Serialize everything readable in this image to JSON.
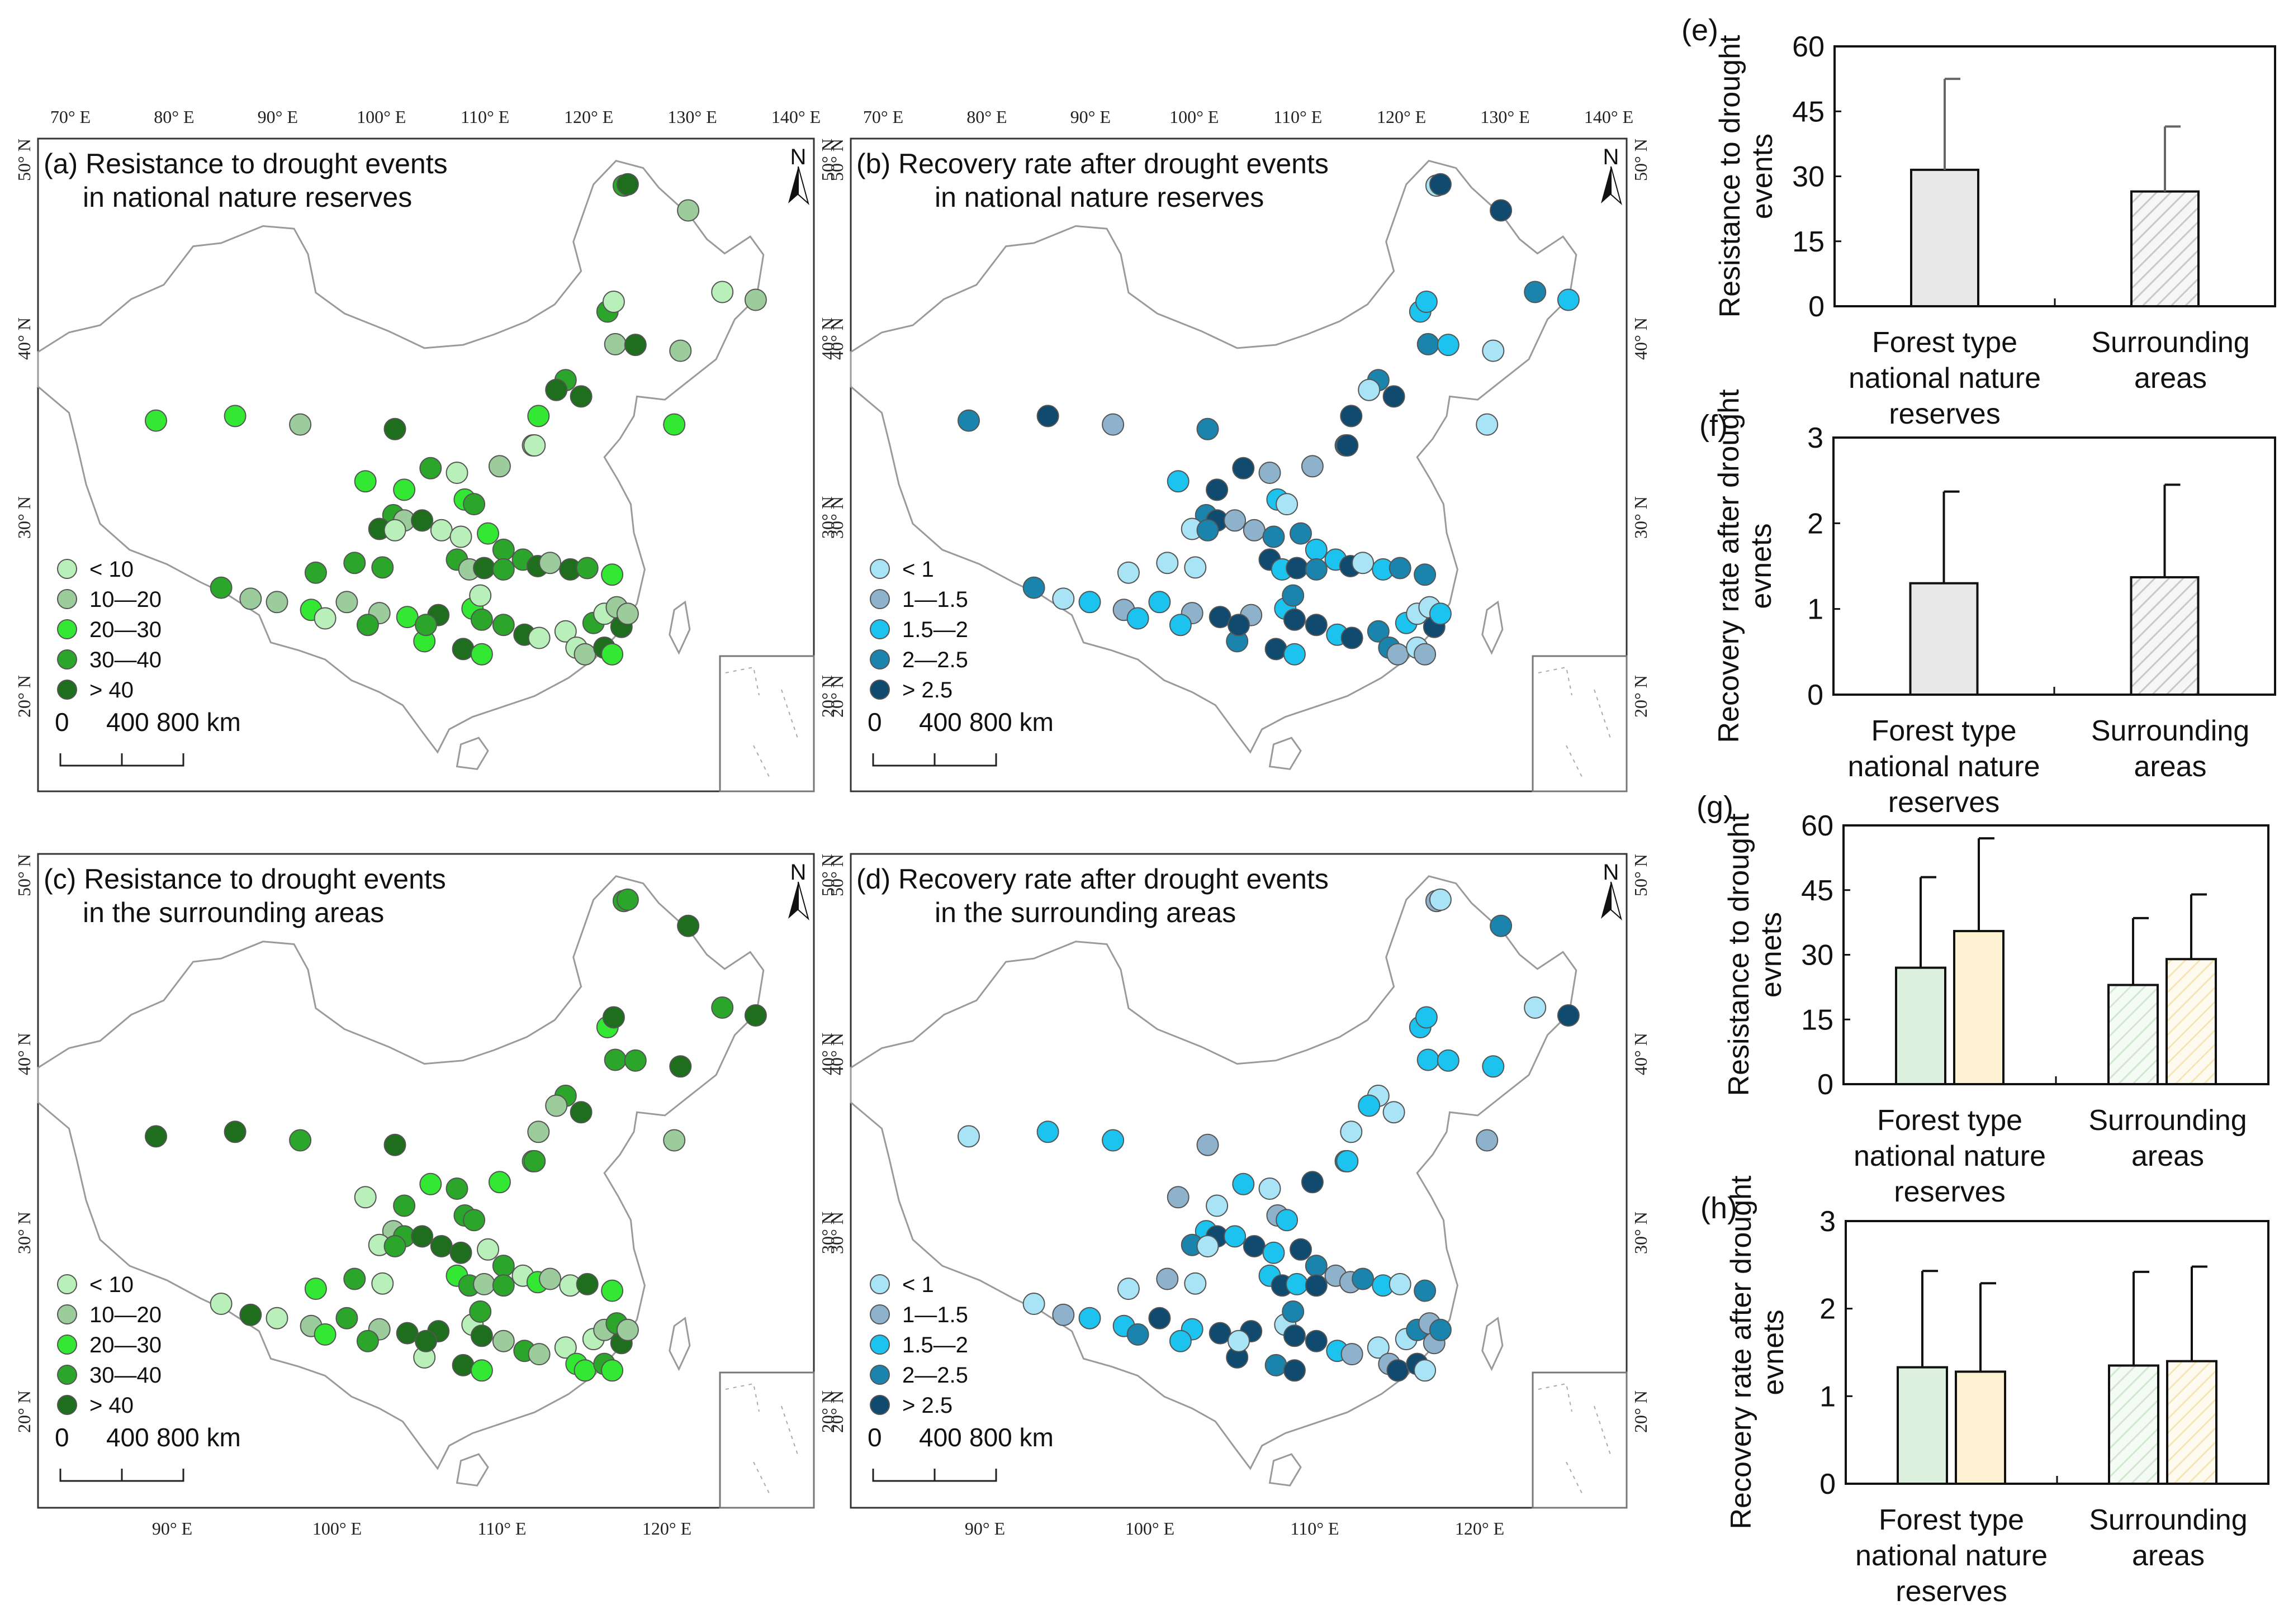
{
  "maps": [
    {
      "id": "a",
      "title_line1": "(a) Resistance to drought events",
      "title_line2": "in national nature reserves",
      "lon_ticks": [
        "70° E",
        "80° E",
        "90° E",
        "100° E",
        "110° E",
        "120° E",
        "130° E",
        "140° E"
      ],
      "lat_ticks": [
        "50° N",
        "40° N",
        "30° N",
        "20° N"
      ],
      "legend": [
        "< 10",
        "10—20",
        "20—30",
        "30—40",
        "> 40"
      ],
      "palette": "green",
      "seed": 11
    },
    {
      "id": "b",
      "title_line1": "(b) Recovery rate after drought events",
      "title_line2": "in national nature reserves",
      "lon_ticks": [
        "70° E",
        "80° E",
        "90° E",
        "100° E",
        "110° E",
        "120° E",
        "130° E",
        "140° E"
      ],
      "lat_ticks": [
        "50° N",
        "40° N",
        "30° N",
        "20° N"
      ],
      "legend": [
        "< 1",
        "1—1.5",
        "1.5—2",
        "2—2.5",
        "> 2.5"
      ],
      "palette": "blue",
      "seed": 23
    },
    {
      "id": "c",
      "title_line1": "(c) Resistance to drought events",
      "title_line2": "in the surrounding areas",
      "lon_ticks": [
        "90° E",
        "100° E",
        "110° E",
        "120° E"
      ],
      "lat_ticks": [
        "50° N",
        "40° N",
        "30° N",
        "20° N"
      ],
      "legend": [
        "< 10",
        "10—20",
        "20—30",
        "30—40",
        "> 40"
      ],
      "palette": "green",
      "seed": 37
    },
    {
      "id": "d",
      "title_line1": "(d) Recovery rate after drought events",
      "title_line2": "in the surrounding areas",
      "lon_ticks": [
        "90° E",
        "100° E",
        "110° E",
        "120° E"
      ],
      "lat_ticks": [
        "50° N",
        "40° N",
        "30° N",
        "20° N"
      ],
      "legend": [
        "< 1",
        "1—1.5",
        "1.5—2",
        "2—2.5",
        "> 2.5"
      ],
      "palette": "blue",
      "seed": 53
    }
  ],
  "scale_bar": {
    "labels": [
      "0",
      "400",
      "800 km"
    ]
  },
  "north_label": "N",
  "colors": {
    "green": [
      "#b9f0b9",
      "#9ccc9c",
      "#33e833",
      "#2ba62b",
      "#1e6e1e"
    ],
    "blue": [
      "#a8e4f5",
      "#8fb2cc",
      "#1cc3ee",
      "#1a84ad",
      "#104a6e"
    ],
    "map_outline": "#9a9a9a",
    "frame": "#333333"
  },
  "chart_data": [
    {
      "id": "e",
      "panel_label": "(e)",
      "type": "bar",
      "ylabel": "Resistance to drought events",
      "ylim": [
        0,
        60
      ],
      "yticks": [
        "0",
        "15",
        "30",
        "45",
        "60"
      ],
      "categories": [
        "Forest type national nature reserves",
        "Surrounding areas"
      ],
      "category_lines": [
        [
          "Forest type",
          "national nature",
          "reserves"
        ],
        [
          "Surrounding",
          "areas"
        ]
      ],
      "series": [
        {
          "values": [
            31.5,
            26.5
          ],
          "errors": [
            21,
            15
          ],
          "fills": [
            "#e8e8e8",
            "hatch-gray"
          ]
        }
      ]
    },
    {
      "id": "f",
      "panel_label": "(f)",
      "type": "bar",
      "ylabel": "Recovery rate after drought evnets",
      "ylim": [
        0,
        3
      ],
      "yticks": [
        "0",
        "1",
        "2",
        "3"
      ],
      "categories": [
        "Forest type national nature reserves",
        "Surrounding areas"
      ],
      "category_lines": [
        [
          "Forest type",
          "national nature",
          "reserves"
        ],
        [
          "Surrounding",
          "areas"
        ]
      ],
      "series": [
        {
          "values": [
            1.3,
            1.37
          ],
          "errors": [
            1.07,
            1.08
          ],
          "fills": [
            "#e8e8e8",
            "hatch-gray"
          ]
        }
      ]
    },
    {
      "id": "g",
      "panel_label": "(g)",
      "type": "bar",
      "ylabel": "Resistance to drought evnets",
      "ylim": [
        0,
        60
      ],
      "yticks": [
        "0",
        "15",
        "30",
        "45",
        "60"
      ],
      "categories": [
        "Forest type national nature reserves",
        "Surrounding areas"
      ],
      "category_lines": [
        [
          "Forest type",
          "national nature",
          "reserves"
        ],
        [
          "Surrounding",
          "areas"
        ]
      ],
      "series": [
        {
          "values": [
            27,
            23
          ],
          "errors": [
            21,
            15.5
          ],
          "fills": [
            "#ddf0dd",
            "hatch-green"
          ]
        },
        {
          "values": [
            35.5,
            29
          ],
          "errors": [
            21.5,
            15
          ],
          "fills": [
            "#fdf3d2",
            "hatch-yellow"
          ]
        }
      ]
    },
    {
      "id": "h",
      "panel_label": "(h)",
      "type": "bar",
      "ylabel": "Recovery rate after drought evnets",
      "ylim": [
        0,
        3
      ],
      "yticks": [
        "0",
        "1",
        "2",
        "3"
      ],
      "categories": [
        "Forest type national nature reserves",
        "Surrounding areas"
      ],
      "category_lines": [
        [
          "Forest type",
          "national nature",
          "reserves"
        ],
        [
          "Surrounding",
          "areas"
        ]
      ],
      "series": [
        {
          "values": [
            1.33,
            1.35
          ],
          "errors": [
            1.1,
            1.07
          ],
          "fills": [
            "#ddf0dd",
            "hatch-green"
          ]
        },
        {
          "values": [
            1.28,
            1.4
          ],
          "errors": [
            1.01,
            1.08
          ],
          "fills": [
            "#fdf3d2",
            "hatch-yellow"
          ]
        }
      ]
    }
  ]
}
